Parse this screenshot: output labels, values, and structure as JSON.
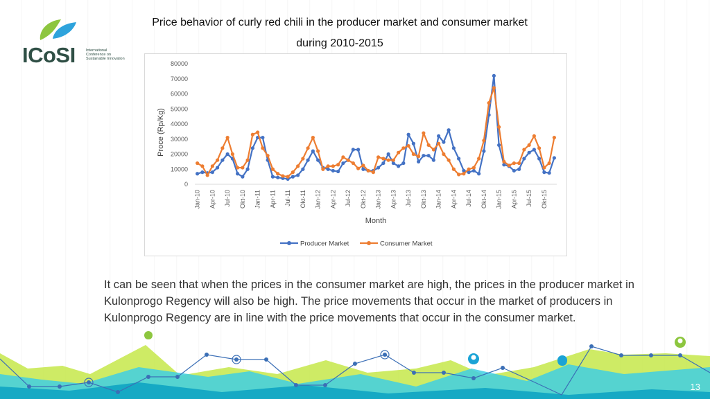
{
  "slide": {
    "title": "Price behavior of curly red chili in the producer market and consumer market during 2010-2015",
    "body": "It can be seen that when the prices in the consumer market are high, the prices in the producer market in Kulonprogo Regency will also be high. The price movements that occur in the market of producers in Kulonprogo Regency are in line with the price movements that occur in the consumer market.",
    "page_number": "13"
  },
  "logo": {
    "word": "ICoSI",
    "subtitle": "International Conference on Sustainable Innovation",
    "colors": {
      "green": "#8dc63f",
      "blue": "#2ea3dc",
      "dark": "#2f4f45"
    }
  },
  "chart_data": {
    "type": "line",
    "title": "",
    "xlabel": "Month",
    "ylabel": "Proce (Rp/Kg)",
    "ylim": [
      0,
      80000
    ],
    "yticks": [
      0,
      10000,
      20000,
      30000,
      40000,
      50000,
      60000,
      70000,
      80000
    ],
    "x_tick_labels": [
      "Jan-10",
      "Apr-10",
      "Jul-10",
      "Okt-10",
      "Jan-11",
      "Apr-11",
      "Jul-11",
      "Okt-11",
      "Jan-12",
      "Apr-12",
      "Jul-12",
      "Okt-12",
      "Jan-13",
      "Apr-13",
      "Jul-13",
      "Okt-13",
      "Jan-14",
      "Apr-14",
      "Jul-14",
      "Okt-14",
      "Jan-15",
      "Apr-15",
      "Jul-15",
      "Okt-15"
    ],
    "legend_position": "bottom",
    "grid": false,
    "series": [
      {
        "name": "Producer Market",
        "color": "#4472c4",
        "values": [
          7000,
          8000,
          7500,
          8000,
          11000,
          16000,
          20000,
          17000,
          7000,
          5000,
          10000,
          24000,
          31000,
          31000,
          16000,
          5000,
          4500,
          4000,
          3500,
          5000,
          6000,
          10000,
          16000,
          22000,
          16000,
          11000,
          10000,
          9000,
          8500,
          14000,
          16000,
          23000,
          23000,
          10000,
          9000,
          9000,
          11000,
          14000,
          20000,
          14000,
          12000,
          14000,
          33000,
          27000,
          15000,
          19000,
          19000,
          16000,
          32000,
          28000,
          36000,
          24000,
          17000,
          9000,
          8000,
          9000,
          7000,
          22000,
          46000,
          72000,
          26000,
          13000,
          12000,
          9000,
          10000,
          17000,
          21000,
          23000,
          17000,
          8000,
          7500,
          17500
        ]
      },
      {
        "name": "Consumer Market",
        "color": "#ed7d31",
        "values": [
          14000,
          12000,
          6000,
          12000,
          16000,
          24000,
          31000,
          20000,
          11000,
          11000,
          16000,
          33000,
          34500,
          24000,
          19000,
          10000,
          7000,
          5500,
          5000,
          8000,
          12000,
          17000,
          24000,
          31000,
          22000,
          10000,
          12000,
          12000,
          13000,
          18000,
          16000,
          14000,
          10500,
          12500,
          9000,
          8000,
          18000,
          17000,
          16000,
          16000,
          21000,
          24000,
          25500,
          20000,
          18500,
          34000,
          26000,
          23000,
          27000,
          20000,
          16000,
          10000,
          6500,
          7000,
          10000,
          11000,
          17000,
          29000,
          54000,
          64000,
          38000,
          15000,
          12500,
          14000,
          14000,
          23000,
          26000,
          32000,
          24000,
          11000,
          14000,
          31000
        ]
      }
    ]
  }
}
